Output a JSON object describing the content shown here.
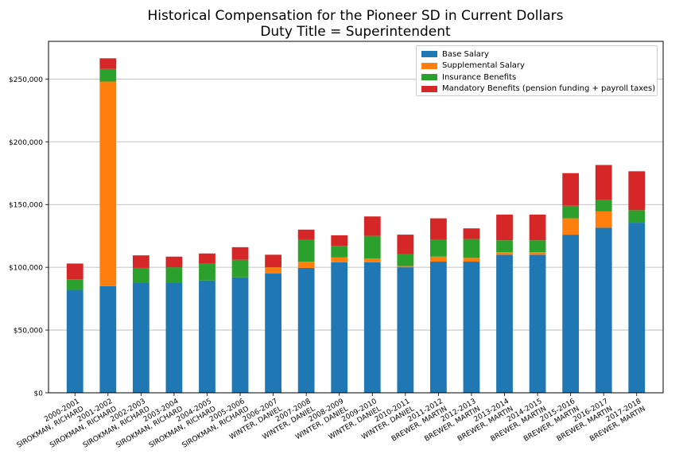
{
  "chart_data": {
    "type": "bar",
    "stacked": true,
    "title": "Historical Compensation for the Pioneer SD in Current Dollars\nDuty Title = Superintendent",
    "xlabel": "",
    "ylabel": "",
    "ylim": [
      0,
      280000
    ],
    "yticks": [
      0,
      50000,
      100000,
      150000,
      200000,
      250000
    ],
    "ytick_labels": [
      "$0",
      "$50,000",
      "$100,000",
      "$150,000",
      "$200,000",
      "$250,000"
    ],
    "grid": "horizontal",
    "legend_position": "top-right",
    "categories": [
      "2000-2001\nSIROKMAN, RICHARD",
      "2001-2002\nSIROKMAN, RICHARD",
      "2002-2003\nSIROKMAN, RICHARD",
      "2003-2004\nSIROKMAN, RICHARD",
      "2004-2005\nSIROKMAN, RICHARD",
      "2005-2006\nSIROKMAN, RICHARD",
      "2006-2007\nWINTER, DANIEL",
      "2007-2008\nWINTER, DANIEL",
      "2008-2009\nWINTER, DANIEL",
      "2009-2010\nWINTER, DANIEL",
      "2010-2011\nWINTER, DANIEL",
      "2011-2012\nBREWER, MARTIN",
      "2012-2013\nBREWER, MARTIN",
      "2013-2014\nBREWER, MARTIN",
      "2014-2015\nBREWER, MARTIN",
      "2015-2016\nBREWER, MARTIN",
      "2016-2017\nBREWER, MARTIN",
      "2017-2018\nBREWER, MARTIN"
    ],
    "series": [
      {
        "name": "Base Salary",
        "color": "#1f77b4",
        "values": [
          82000,
          85000,
          88000,
          88000,
          89500,
          92000,
          95000,
          99500,
          104000,
          104000,
          100000,
          104500,
          104500,
          110000,
          110000,
          126000,
          131500,
          135500
        ]
      },
      {
        "name": "Supplemental Salary",
        "color": "#ff7f0e",
        "values": [
          0,
          163000,
          0,
          0,
          0,
          0,
          5000,
          5000,
          4000,
          3000,
          1000,
          4000,
          3000,
          2000,
          2000,
          13000,
          13000,
          0
        ]
      },
      {
        "name": "Insurance Benefits",
        "color": "#2ca02c",
        "values": [
          8500,
          10000,
          11500,
          12000,
          13500,
          14000,
          0,
          17500,
          9000,
          18000,
          9500,
          13500,
          15000,
          9500,
          9500,
          10000,
          9000,
          10000
        ]
      },
      {
        "name": "Mandatory Benefits (pension funding + payroll taxes)",
        "color": "#d62728",
        "values": [
          12500,
          8500,
          10000,
          8500,
          8000,
          10000,
          10000,
          8000,
          8500,
          15500,
          15500,
          17000,
          8500,
          20500,
          20500,
          26000,
          28000,
          31000
        ]
      }
    ]
  }
}
